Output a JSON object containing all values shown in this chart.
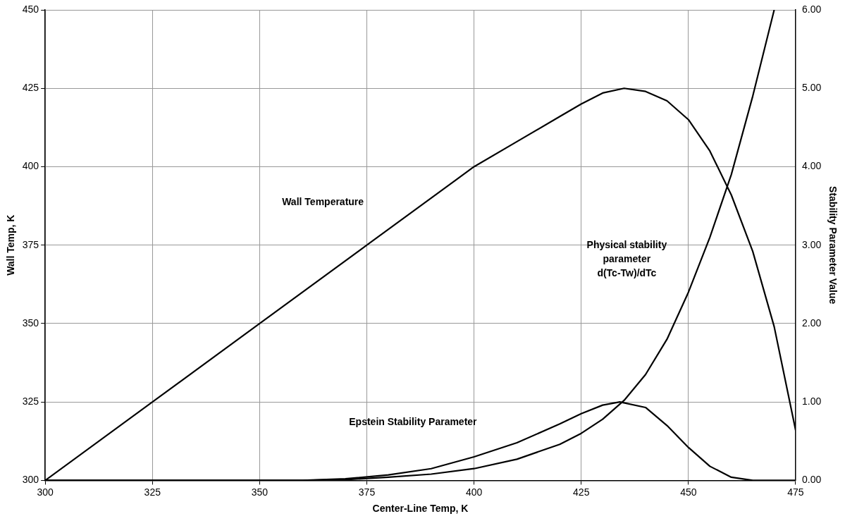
{
  "chart_data": {
    "type": "line",
    "xlabel": "Center-Line Temp, K",
    "ylabel": "Wall Temp, K",
    "y2label": "Stability Parameter Value",
    "xlim": [
      300,
      475
    ],
    "xticks": [
      300,
      325,
      350,
      375,
      400,
      425,
      450,
      475
    ],
    "ylim": [
      300,
      450
    ],
    "yticks": [
      300,
      325,
      350,
      375,
      400,
      425,
      450
    ],
    "y2lim": [
      0,
      6
    ],
    "y2ticks": [
      {
        "value": 0,
        "label": "0.00"
      },
      {
        "value": 1,
        "label": "1.00"
      },
      {
        "value": 2,
        "label": "2.00"
      },
      {
        "value": 3,
        "label": "3.00"
      },
      {
        "value": 4,
        "label": "4.00"
      },
      {
        "value": 5,
        "label": "5.00"
      },
      {
        "value": 6,
        "label": "6.00"
      }
    ],
    "grid": true,
    "legend": false,
    "marker": "none",
    "line_style": "solid",
    "series": [
      {
        "color": "#000000",
        "x": [
          300,
          325,
          350,
          375,
          400,
          410,
          420,
          425,
          430,
          435,
          440,
          445,
          450,
          455,
          460,
          465,
          470,
          475
        ],
        "values": [
          300,
          325,
          350,
          375,
          400,
          408,
          416,
          420,
          423.5,
          425,
          424,
          421,
          415,
          405,
          391,
          373,
          349,
          316
        ]
      },
      {
        "color": "#000000",
        "axis": "y2",
        "x": [
          300,
          360,
          370,
          380,
          390,
          400,
          410,
          420,
          425,
          430,
          435,
          440,
          445,
          450,
          455,
          460,
          465,
          470
        ],
        "values": [
          0,
          0,
          0.01,
          0.04,
          0.08,
          0.15,
          0.27,
          0.46,
          0.6,
          0.78,
          1.02,
          1.35,
          1.8,
          2.4,
          3.1,
          3.9,
          4.9,
          6.0
        ]
      },
      {
        "color": "#000000",
        "axis": "y2",
        "x": [
          300,
          360,
          370,
          380,
          390,
          400,
          410,
          420,
          425,
          430,
          434,
          440,
          445,
          450,
          455,
          460,
          465,
          475
        ],
        "values": [
          0,
          0,
          0.02,
          0.07,
          0.15,
          0.3,
          0.48,
          0.72,
          0.85,
          0.96,
          1.0,
          0.93,
          0.7,
          0.42,
          0.18,
          0.04,
          0,
          0
        ]
      }
    ],
    "annotations": [
      "Wall Temperature",
      "Physical stability\nparameter\nd(Tc-Tw)/dTc",
      "Epstein Stability Parameter"
    ]
  }
}
